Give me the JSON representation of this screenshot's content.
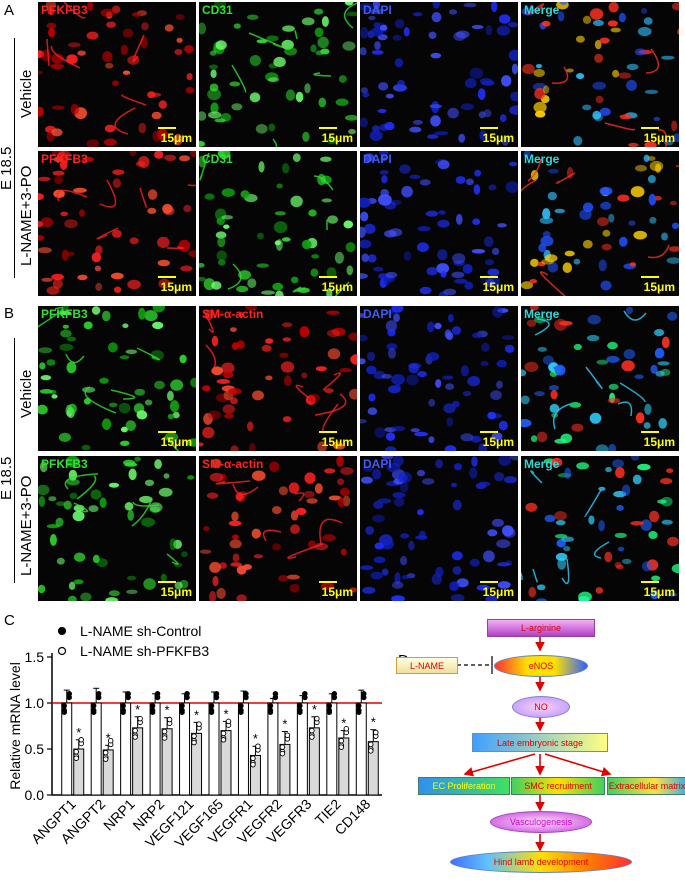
{
  "panelA": {
    "letter": "A",
    "stage": "E 18.5",
    "rows": [
      "Vehicle",
      "L-NAME+3-PO"
    ],
    "columns": [
      {
        "label": "PFKFB3",
        "label_color": "#ff2020"
      },
      {
        "label": "CD31",
        "label_color": "#30e030"
      },
      {
        "label": "DAPI",
        "label_color": "#3a5cff"
      },
      {
        "label": "Merge",
        "label_color": "#30d8d8"
      }
    ],
    "scale_bar": "15μm"
  },
  "panelB": {
    "letter": "B",
    "stage": "E 18.5",
    "rows": [
      "Vehicle",
      "L-NAME+3-PO"
    ],
    "columns": [
      {
        "label": "PFKFB3",
        "label_color": "#30e030"
      },
      {
        "label": "SM-α-actin",
        "label_color": "#ff2020"
      },
      {
        "label": "DAPI",
        "label_color": "#3a5cff"
      },
      {
        "label": "Merge",
        "label_color": "#30d8d8"
      }
    ],
    "scale_bar": "15μm"
  },
  "panelC": {
    "letter": "C",
    "chart_data": {
      "type": "bar",
      "ylabel": "Relative mRNA level",
      "ylim": [
        0,
        1.5
      ],
      "yticks": [
        "0.0",
        "0.5",
        "1.0",
        "1.5"
      ],
      "reference_line": 1.0,
      "categories": [
        "ANGPT1",
        "ANGPT2",
        "NRP1",
        "NRP2",
        "VEGF121",
        "VEGF165",
        "VEGFR1",
        "VEGFR2",
        "VEGFR3",
        "TIE2",
        "CD148"
      ],
      "series": [
        {
          "name": "L-NAME sh-Control",
          "marker": "filled",
          "values": [
            1.0,
            1.0,
            1.0,
            1.0,
            1.0,
            1.0,
            1.0,
            1.0,
            1.0,
            1.0,
            1.0
          ],
          "errors": [
            0.14,
            0.16,
            0.12,
            0.1,
            0.1,
            0.12,
            0.13,
            0.05,
            0.08,
            0.1,
            0.14
          ]
        },
        {
          "name": "L-NAME sh-PFKFB3",
          "marker": "open",
          "values": [
            0.5,
            0.49,
            0.73,
            0.72,
            0.67,
            0.7,
            0.43,
            0.55,
            0.73,
            0.62,
            0.58
          ],
          "errors": [
            0.1,
            0.05,
            0.12,
            0.12,
            0.12,
            0.1,
            0.1,
            0.14,
            0.12,
            0.08,
            0.13
          ]
        }
      ],
      "significance": "*",
      "legend": "top-left"
    }
  },
  "panelD": {
    "letter": "D",
    "nodes": {
      "l_arginine": "L-arginine",
      "l_name": "L-NAME",
      "enos": "eNOS",
      "no": "NO",
      "late": "Late embryonic stage",
      "ec": "EC Proliferation",
      "smc": "SMC recruitment",
      "ecm": "Extracellular matrix",
      "vasc": "Vasculogenesis",
      "hind": "Hind lamb development"
    }
  }
}
